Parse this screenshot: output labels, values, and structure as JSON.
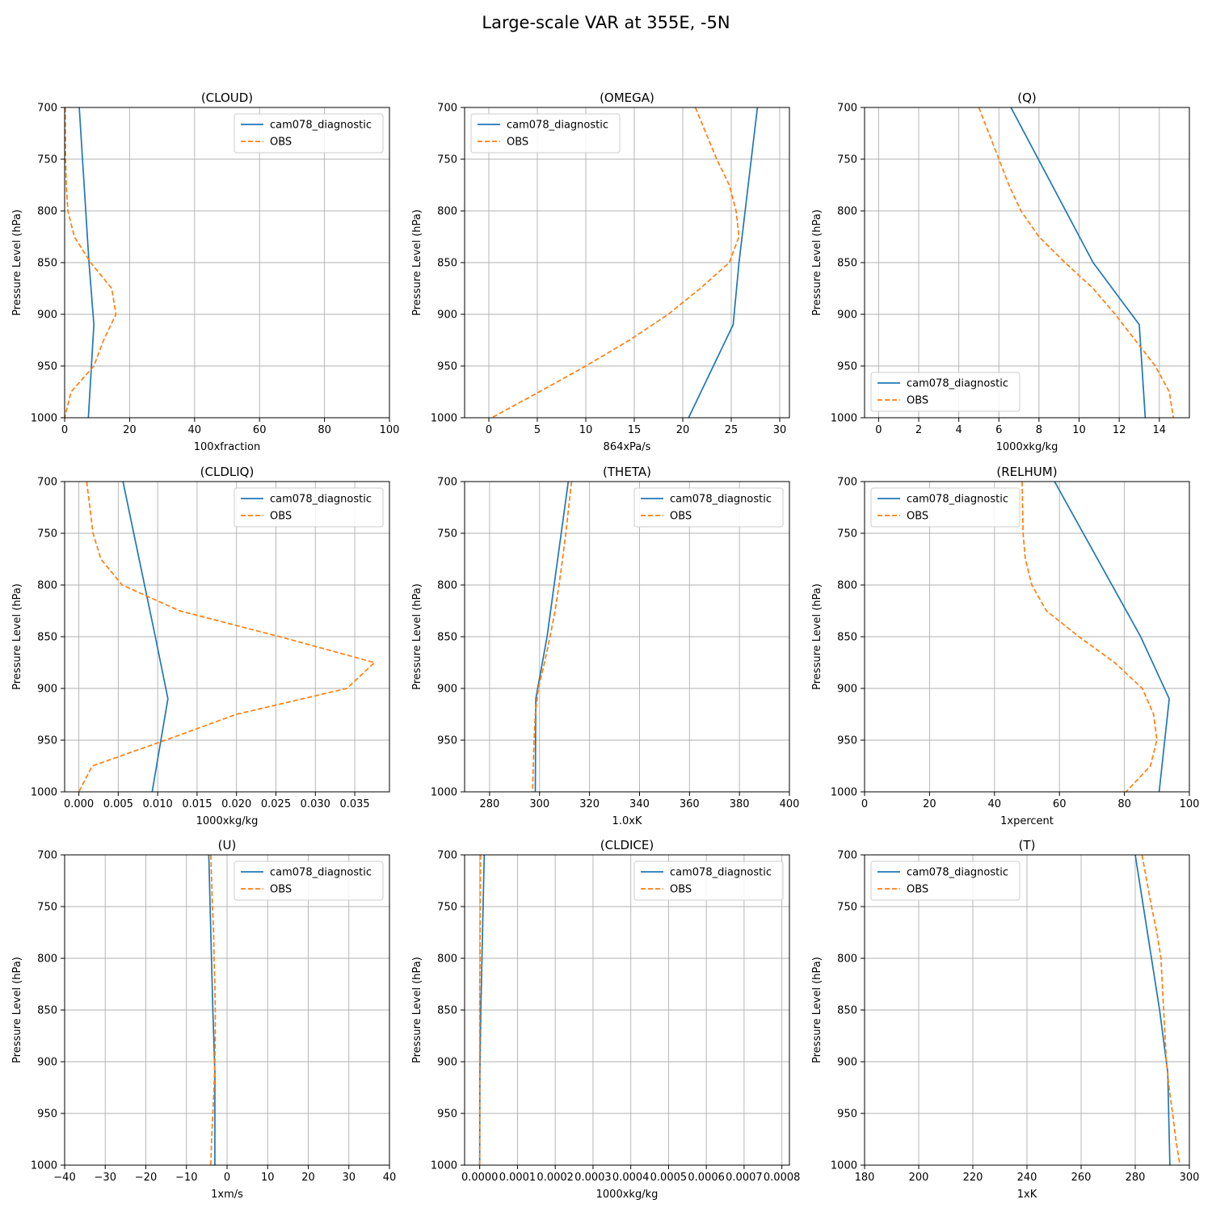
{
  "figure": {
    "suptitle": "Large-scale VAR at 355E, -5N"
  },
  "colors": {
    "model": "#1f77b4",
    "obs": "#ff7f0e",
    "grid": "#b0b0b0",
    "axes": "#000000"
  },
  "chart_data": [
    {
      "type": "line",
      "title": "(CLOUD)",
      "xlabel": "100xfraction",
      "ylabel": "Pressure Level (hPa)",
      "xlim": [
        0,
        100
      ],
      "xticks": [
        0,
        20,
        40,
        60,
        80,
        100
      ],
      "ylim": [
        1000,
        700
      ],
      "yticks": [
        700,
        750,
        800,
        850,
        900,
        950,
        1000
      ],
      "grid": true,
      "legend_loc": "upper right",
      "series": [
        {
          "name": "cam078_diagnostic",
          "style": "solid",
          "color": "#1f77b4",
          "y": [
            700,
            850,
            910,
            1000
          ],
          "x": [
            4.5,
            7.5,
            9.0,
            7.3
          ]
        },
        {
          "name": "OBS",
          "style": "dashed",
          "color": "#ff7f0e",
          "y": [
            700,
            750,
            775,
            800,
            825,
            850,
            875,
            900,
            925,
            950,
            975,
            1000
          ],
          "x": [
            0.2,
            0.3,
            0.5,
            1.0,
            3.0,
            8.0,
            14.5,
            15.8,
            12.0,
            9.0,
            2.0,
            0.0
          ]
        }
      ]
    },
    {
      "type": "line",
      "title": "(OMEGA)",
      "xlabel": "864xPa/s",
      "ylabel": "Pressure Level (hPa)",
      "xlim": [
        -2.5,
        31
      ],
      "xticks": [
        0,
        5,
        10,
        15,
        20,
        25,
        30
      ],
      "ylim": [
        1000,
        700
      ],
      "yticks": [
        700,
        750,
        800,
        850,
        900,
        950,
        1000
      ],
      "grid": true,
      "legend_loc": "upper left",
      "series": [
        {
          "name": "cam078_diagnostic",
          "style": "solid",
          "color": "#1f77b4",
          "y": [
            700,
            850,
            910,
            1000
          ],
          "x": [
            27.7,
            25.8,
            25.2,
            20.6
          ]
        },
        {
          "name": "OBS",
          "style": "dashed",
          "color": "#ff7f0e",
          "y": [
            700,
            750,
            775,
            800,
            825,
            850,
            875,
            900,
            925,
            950,
            975,
            1000
          ],
          "x": [
            21.3,
            23.5,
            24.8,
            25.5,
            25.8,
            24.8,
            21.8,
            18.5,
            14.5,
            10.0,
            5.2,
            0.3
          ]
        }
      ]
    },
    {
      "type": "line",
      "title": "(Q)",
      "xlabel": "1000xkg/kg",
      "ylabel": "Pressure Level (hPa)",
      "xlim": [
        -0.7,
        15.5
      ],
      "xticks": [
        0,
        2,
        4,
        6,
        8,
        10,
        12,
        14
      ],
      "ylim": [
        1000,
        700
      ],
      "yticks": [
        700,
        750,
        800,
        850,
        900,
        950,
        1000
      ],
      "grid": true,
      "legend_loc": "lower left",
      "series": [
        {
          "name": "cam078_diagnostic",
          "style": "solid",
          "color": "#1f77b4",
          "y": [
            700,
            850,
            910,
            1000
          ],
          "x": [
            6.6,
            10.7,
            13.0,
            13.3
          ]
        },
        {
          "name": "OBS",
          "style": "dashed",
          "color": "#ff7f0e",
          "y": [
            700,
            750,
            775,
            800,
            825,
            850,
            875,
            900,
            925,
            950,
            975,
            1000
          ],
          "x": [
            5.0,
            6.0,
            6.5,
            7.1,
            8.0,
            9.3,
            10.7,
            11.8,
            12.8,
            13.8,
            14.5,
            14.7
          ]
        }
      ]
    },
    {
      "type": "line",
      "title": "(CLDLIQ)",
      "xlabel": "1000xkg/kg",
      "ylabel": "Pressure Level (hPa)",
      "xlim": [
        -0.0018,
        0.0394
      ],
      "xticks": [
        0.0,
        0.005,
        0.01,
        0.015,
        0.02,
        0.025,
        0.03,
        0.035
      ],
      "ylim": [
        1000,
        700
      ],
      "yticks": [
        700,
        750,
        800,
        850,
        900,
        950,
        1000
      ],
      "grid": true,
      "legend_loc": "upper right",
      "series": [
        {
          "name": "cam078_diagnostic",
          "style": "solid",
          "color": "#1f77b4",
          "y": [
            700,
            850,
            910,
            1000
          ],
          "x": [
            0.0056,
            0.0097,
            0.0113,
            0.0093
          ]
        },
        {
          "name": "OBS",
          "style": "dashed",
          "color": "#ff7f0e",
          "y": [
            700,
            750,
            775,
            800,
            825,
            850,
            875,
            900,
            925,
            950,
            975,
            1000
          ],
          "x": [
            0.001,
            0.0018,
            0.0028,
            0.0055,
            0.0128,
            0.0255,
            0.0375,
            0.034,
            0.02,
            0.011,
            0.0017,
            0.0
          ]
        }
      ]
    },
    {
      "type": "line",
      "title": "(THETA)",
      "xlabel": "1.0xK",
      "ylabel": "Pressure Level (hPa)",
      "xlim": [
        270,
        400
      ],
      "xticks": [
        280,
        300,
        320,
        340,
        360,
        380,
        400
      ],
      "ylim": [
        1000,
        700
      ],
      "yticks": [
        700,
        750,
        800,
        850,
        900,
        950,
        1000
      ],
      "grid": true,
      "legend_loc": "upper right",
      "series": [
        {
          "name": "cam078_diagnostic",
          "style": "solid",
          "color": "#1f77b4",
          "y": [
            700,
            850,
            910,
            1000
          ],
          "x": [
            311.5,
            303.0,
            298.5,
            298.3
          ]
        },
        {
          "name": "OBS",
          "style": "dashed",
          "color": "#ff7f0e",
          "y": [
            700,
            750,
            775,
            800,
            825,
            850,
            875,
            900,
            925,
            950,
            975,
            1000
          ],
          "x": [
            312.8,
            310.5,
            309.2,
            307.8,
            306.2,
            304.2,
            302.0,
            299.5,
            298.3,
            297.8,
            297.5,
            297.2
          ]
        }
      ]
    },
    {
      "type": "line",
      "title": "(RELHUM)",
      "xlabel": "1xpercent",
      "ylabel": "Pressure Level (hPa)",
      "xlim": [
        0,
        100
      ],
      "xticks": [
        0,
        20,
        40,
        60,
        80,
        100
      ],
      "ylim": [
        1000,
        700
      ],
      "yticks": [
        700,
        750,
        800,
        850,
        900,
        950,
        1000
      ],
      "grid": true,
      "legend_loc": "upper left",
      "series": [
        {
          "name": "cam078_diagnostic",
          "style": "solid",
          "color": "#1f77b4",
          "y": [
            700,
            850,
            910,
            1000
          ],
          "x": [
            58.5,
            85.0,
            93.8,
            90.7
          ]
        },
        {
          "name": "OBS",
          "style": "dashed",
          "color": "#ff7f0e",
          "y": [
            700,
            750,
            775,
            800,
            825,
            850,
            875,
            900,
            925,
            950,
            975,
            1000
          ],
          "x": [
            48.5,
            48.8,
            49.5,
            51.5,
            56.0,
            66.0,
            77.0,
            85.5,
            89.0,
            90.0,
            88.0,
            80.5
          ]
        }
      ]
    },
    {
      "type": "line",
      "title": "(U)",
      "xlabel": "1xm/s",
      "ylabel": "Pressure Level (hPa)",
      "xlim": [
        -40,
        40
      ],
      "xticks": [
        -40,
        -30,
        -20,
        -10,
        0,
        10,
        20,
        30,
        40
      ],
      "ylim": [
        1000,
        700
      ],
      "yticks": [
        700,
        750,
        800,
        850,
        900,
        950,
        1000
      ],
      "grid": true,
      "legend_loc": "upper right",
      "series": [
        {
          "name": "cam078_diagnostic",
          "style": "solid",
          "color": "#1f77b4",
          "y": [
            700,
            850,
            910,
            1000
          ],
          "x": [
            -4.5,
            -3.5,
            -3.0,
            -3.0
          ]
        },
        {
          "name": "OBS",
          "style": "dashed",
          "color": "#ff7f0e",
          "y": [
            700,
            750,
            775,
            800,
            825,
            850,
            875,
            900,
            925,
            950,
            975,
            1000
          ],
          "x": [
            -4.0,
            -3.6,
            -3.3,
            -3.2,
            -3.0,
            -2.9,
            -2.9,
            -3.0,
            -3.2,
            -3.5,
            -3.8,
            -4.0
          ]
        }
      ]
    },
    {
      "type": "line",
      "title": "(CLDICE)",
      "xlabel": "1000xkg/kg",
      "ylabel": "Pressure Level (hPa)",
      "xlim": [
        -4e-05,
        0.00082
      ],
      "xticks": [
        0.0,
        0.0001,
        0.0002,
        0.0003,
        0.0004,
        0.0005,
        0.0006,
        0.0007,
        0.0008
      ],
      "ylim": [
        1000,
        700
      ],
      "yticks": [
        700,
        750,
        800,
        850,
        900,
        950,
        1000
      ],
      "grid": true,
      "legend_loc": "upper right",
      "series": [
        {
          "name": "cam078_diagnostic",
          "style": "solid",
          "color": "#1f77b4",
          "y": [
            700,
            850,
            910,
            1000
          ],
          "x": [
            1.2e-05,
            3e-06,
            5e-07,
            0.0
          ]
        },
        {
          "name": "OBS",
          "style": "dashed",
          "color": "#ff7f0e",
          "y": [
            700,
            750,
            775,
            800,
            825,
            850,
            875,
            900,
            925,
            950,
            975,
            1000
          ],
          "x": [
            2e-06,
            1.5e-06,
            1e-06,
            1e-06,
            0.0,
            0.0,
            0.0,
            0.0,
            0.0,
            0.0,
            0.0,
            0.0
          ]
        }
      ]
    },
    {
      "type": "line",
      "title": "(T)",
      "xlabel": "1xK",
      "ylabel": "Pressure Level (hPa)",
      "xlim": [
        180,
        300
      ],
      "xticks": [
        180,
        200,
        220,
        240,
        260,
        280,
        300
      ],
      "ylim": [
        1000,
        700
      ],
      "yticks": [
        700,
        750,
        800,
        850,
        900,
        950,
        1000
      ],
      "grid": true,
      "legend_loc": "upper left",
      "series": [
        {
          "name": "cam078_diagnostic",
          "style": "solid",
          "color": "#1f77b4",
          "y": [
            700,
            850,
            910,
            1000
          ],
          "x": [
            280.0,
            289.0,
            292.0,
            292.8
          ]
        },
        {
          "name": "OBS",
          "style": "dashed",
          "color": "#ff7f0e",
          "y": [
            700,
            750,
            775,
            800,
            825,
            850,
            875,
            900,
            925,
            950,
            975,
            1000
          ],
          "x": [
            282.5,
            286.0,
            288.0,
            289.5,
            290.0,
            290.5,
            291.0,
            291.5,
            292.5,
            293.8,
            295.0,
            296.5
          ]
        }
      ]
    }
  ]
}
